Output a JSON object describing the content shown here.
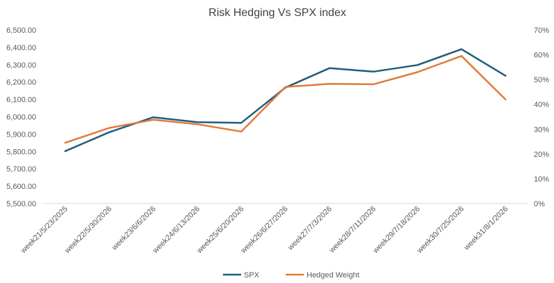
{
  "chart_data": {
    "type": "line",
    "title": "Risk Hedging  Vs SPX index",
    "categories": [
      "week21/5/23/2025",
      "week22/5/30/2026",
      "week23/6/6/2026",
      "week24/6/13/2026",
      "week25/6/20/2026",
      "week26/6/27/2026",
      "week27/7/3/2026",
      "week28/7/11/2026",
      "week29/7/18/2026",
      "week30/7/25/2026",
      "week31/8/1/2026"
    ],
    "series": [
      {
        "name": "SPX",
        "axis": "left",
        "color": "#1f5c7a",
        "values": [
          5802,
          5911,
          5997,
          5969,
          5965,
          6168,
          6280,
          6260,
          6298,
          6389,
          6236
        ]
      },
      {
        "name": "Hedged Weight",
        "axis": "right",
        "color": "#e07a3a",
        "values": [
          0.245,
          0.305,
          0.338,
          0.32,
          0.29,
          0.47,
          0.483,
          0.481,
          0.53,
          0.595,
          0.42
        ]
      }
    ],
    "ylim_left": [
      5500,
      6500
    ],
    "ylim_right": [
      0,
      0.7
    ],
    "y_ticks_left": [
      "5,500.00",
      "5,600.00",
      "5,700.00",
      "5,800.00",
      "5,900.00",
      "6,000.00",
      "6,100.00",
      "6,200.00",
      "6,300.00",
      "6,400.00",
      "6,500.00"
    ],
    "y_ticks_right": [
      "0%",
      "10%",
      "20%",
      "30%",
      "40%",
      "50%",
      "60%",
      "70%"
    ],
    "grid": false,
    "legend_position": "bottom"
  }
}
